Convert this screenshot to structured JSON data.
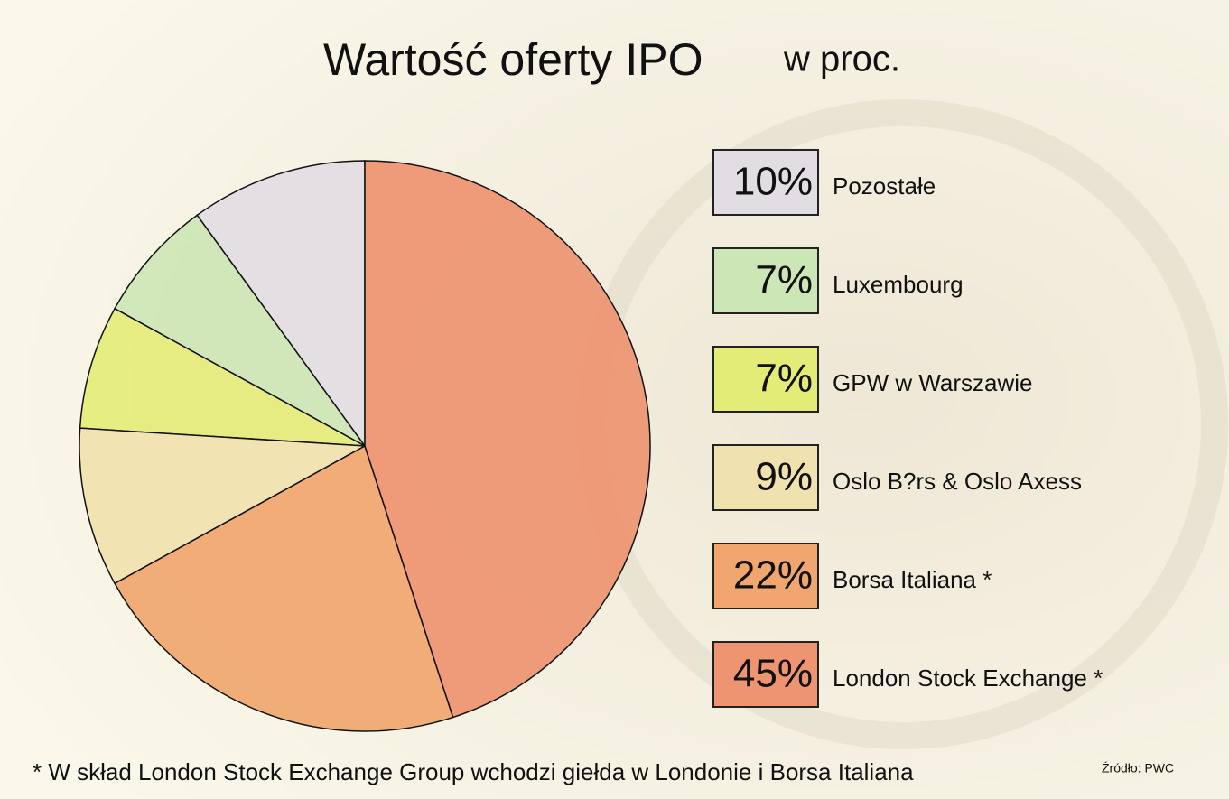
{
  "chart_data": {
    "type": "pie",
    "title": "Wartość oferty IPO",
    "subtitle": "w proc.",
    "categories": [
      "Pozostałe",
      "Luxembourg",
      "GPW w Warszawie",
      "Oslo B?rs & Oslo Axess",
      "Borsa Italiana *",
      "London Stock Exchange *"
    ],
    "values": [
      10,
      7,
      7,
      9,
      22,
      45
    ],
    "value_labels": [
      "10%",
      "7%",
      "7%",
      "9%",
      "22%",
      "45%"
    ],
    "colors": [
      "#e2dde3",
      "#cde6b6",
      "#e4ec78",
      "#f0e2ae",
      "#f0a66e",
      "#ee9471"
    ],
    "footnote": "* W skład London Stock Exchange Group wchodzi giełda w Londonie i Borsa Italiana",
    "source": "Źródło: PWC"
  }
}
